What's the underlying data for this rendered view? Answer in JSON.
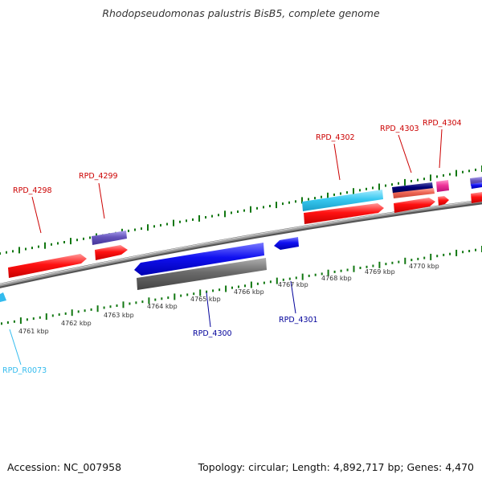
{
  "title": "Rhodopseudomonas palustris BisB5, complete genome",
  "footer": {
    "accession_label": "Accession: NC_007958",
    "summary": "Topology: circular; Length: 4,892,717 bp; Genes: 4,470"
  },
  "colors": {
    "forward_gene": "#ee0000",
    "reverse_gene": "#0000dd",
    "forward_label": "#cc0000",
    "reverse_label": "#00009a",
    "rna_label": "#33bbee",
    "cyan_feature": "#33ccee",
    "navy_feature": "#000077",
    "salmon_feature": "#ee6655",
    "magenta_feature": "#ee3399",
    "purple_feature": "#6655bb",
    "gray_feature": "#666666",
    "backbone": "#888888",
    "tick": "#117711"
  },
  "kbp_labels": [
    "4761 kbp",
    "4762 kbp",
    "4763 kbp",
    "4764 kbp",
    "4765 kbp",
    "4766 kbp",
    "4767 kbp",
    "4768 kbp",
    "4769 kbp",
    "4770 kbp"
  ],
  "gene_labels": {
    "rpd_4298": "RPD_4298",
    "rpd_4299": "RPD_4299",
    "rpd_4302": "RPD_4302",
    "rpd_4303": "RPD_4303",
    "rpd_4304": "RPD_4304",
    "rpd_4300": "RPD_4300",
    "rpd_4301": "RPD_4301",
    "rpd_r0073": "RPD_R0073"
  }
}
